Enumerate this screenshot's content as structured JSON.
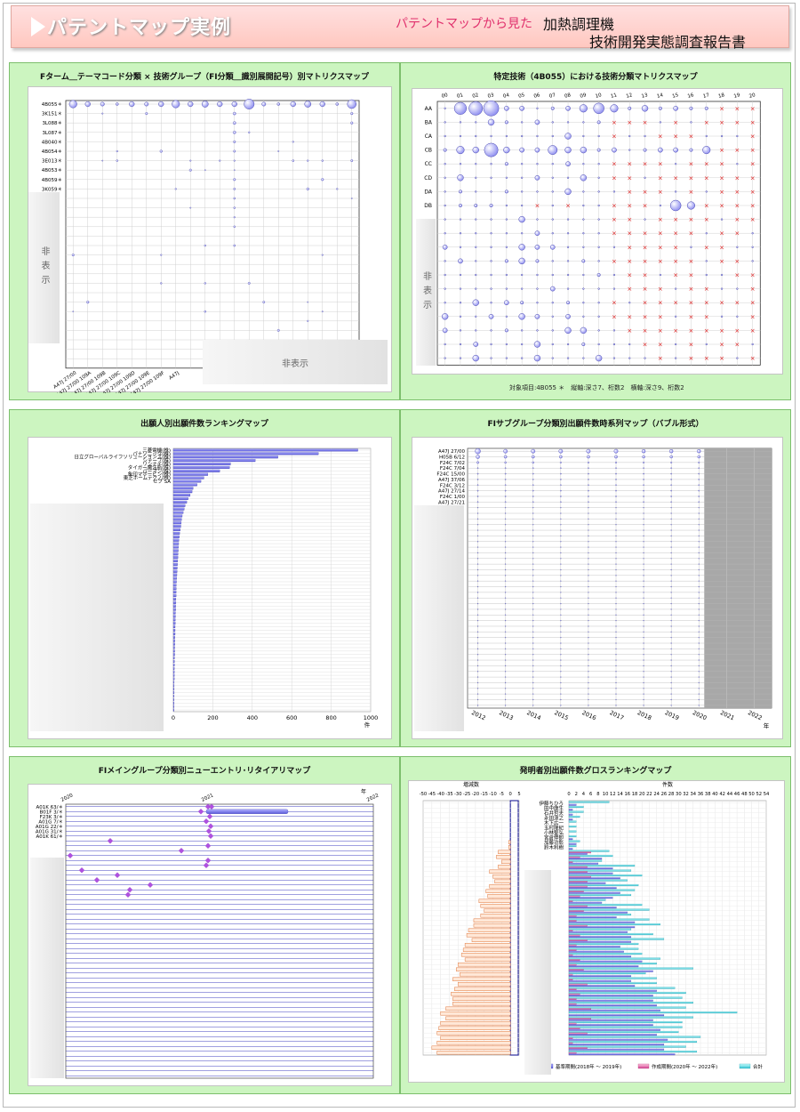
{
  "header": {
    "title": "パテントマップ実例",
    "subtitle_pink": "パテントマップから見た",
    "report_line1": "加熱調理機",
    "report_line2": "技術開発実態調査報告書"
  },
  "hidden_label": "非表示",
  "hidden_label_vertical": "非表示",
  "panels": {
    "p1": {
      "title": "Fターム＿テーマコード分類 × 技術グループ（FI分類＿識別展開記号）別マトリクスマップ"
    },
    "p2": {
      "title": "特定技術（4B055）における技術分類マトリクスマップ",
      "footnote": "対象項目:4B055 ＊　縦軸:深さ7、桁数2　横軸:深さ9、桁数2"
    },
    "p3": {
      "title": "出願人別出願件数ランキングマップ"
    },
    "p4": {
      "title": "FIサブグループ分類別出願件数時系列マップ（バブル形式）"
    },
    "p5": {
      "title": "FIメイングループ分類別ニューエントリ･リタイアリマップ"
    },
    "p6": {
      "title": "発明者別出願件数グロスランキングマップ",
      "legend": {
        "base": "基準期間(2018年 ～ 2019年)",
        "created": "作成期間(2020年 ～ 2022年)",
        "total": "合計"
      },
      "left_axis_title": "増減数",
      "right_axis_title": "件数"
    }
  },
  "chart_data": [
    {
      "id": "ftheme_matrix",
      "type": "scatter",
      "row_labels": [
        "4B055＊",
        "3K151＊",
        "3L088＊",
        "3L087＊",
        "4B040＊",
        "4B054＊",
        "3E013＊",
        "4B053＊",
        "4B059＊",
        "3K059＊"
      ],
      "col_labels": [
        "A47J 27/00",
        "A47J 27/00 109A",
        "A47J 27/00 109B",
        "A47J 27/00 109C",
        "A47J 27/00 109D",
        "A47J 27/00 109E",
        "A47J 27/00 109F",
        "A47J"
      ],
      "row0_sizes": [
        5,
        3,
        2,
        1,
        3,
        2,
        3,
        5,
        3,
        4,
        3,
        3,
        7,
        2,
        1,
        3,
        4,
        3,
        1,
        6
      ]
    },
    {
      "id": "b055_matrix",
      "type": "scatter",
      "x_labels": [
        "00",
        "01",
        "02",
        "03",
        "04",
        "05",
        "06",
        "07",
        "08",
        "09",
        "10",
        "11",
        "12",
        "13",
        "14",
        "15",
        "16",
        "17",
        "18",
        "19",
        "20"
      ],
      "y_labels": [
        "AA",
        "BA",
        "CA",
        "CB",
        "CC",
        "CD",
        "DA",
        "DB"
      ],
      "row_AA": [
        0,
        7,
        8,
        9,
        2,
        2,
        0,
        1,
        2,
        4,
        6,
        4,
        1,
        3,
        1,
        2,
        1,
        1,
        -1,
        -1,
        -1
      ],
      "row_CB": [
        1,
        4,
        3,
        8,
        3,
        2,
        2,
        5,
        3,
        3,
        1,
        2,
        0,
        1,
        2,
        2,
        1,
        4,
        -1,
        -1,
        -1
      ],
      "row_DB": [
        0,
        1,
        1,
        1,
        0,
        0,
        -1,
        0,
        -1,
        0,
        0,
        -1,
        -1,
        -1,
        0,
        6,
        4,
        -1,
        -1,
        -1,
        -1
      ]
    },
    {
      "id": "applicant_ranking",
      "type": "bar",
      "orientation": "horizontal",
      "categories": [
        "三菱電機(株)",
        "パナソニック(株)",
        "日立グローバルライフソリューションズ(株)",
        "シャープ(株)",
        "リンナイ(株)",
        "タイガー魔法瓶(株)",
        "パーマン(株)",
        "象印マホービン(株)",
        "東芝ホームテクノ(株)",
        "セブ SA"
      ],
      "values": [
        935,
        735,
        530,
        415,
        290,
        285,
        235,
        175,
        155,
        140
      ],
      "other_values": [
        120,
        100,
        95,
        85,
        75,
        68,
        60,
        55,
        50,
        45,
        42,
        40,
        38,
        35,
        32,
        30,
        28,
        27,
        26,
        25,
        24,
        23,
        22,
        21,
        20,
        19,
        18,
        17,
        16,
        15,
        15,
        14,
        14,
        13,
        13,
        12,
        12,
        11,
        11,
        10,
        10,
        9,
        9,
        9,
        8,
        8,
        8,
        7,
        7,
        7,
        6,
        6,
        6,
        5,
        5,
        5,
        5,
        4,
        4,
        4,
        4,
        3,
        3,
        3,
        3,
        3
      ],
      "xlim": [
        0,
        1000
      ],
      "x_ticks": [
        0,
        200,
        400,
        600,
        800,
        1000
      ],
      "x_unit": "件"
    },
    {
      "id": "fi_subgroup_timeseries",
      "type": "scatter",
      "row_labels": [
        "A47J 27/00",
        "H05B 6/12",
        "F24C 7/02",
        "F24C 7/04",
        "F24C 15/00",
        "A47J 37/06",
        "F24C 3/12",
        "A47J 27/14",
        "F24C 1/00",
        "A47J 27/21"
      ],
      "years": [
        "2012",
        "2013",
        "2014",
        "2015",
        "2016",
        "2017",
        "2018",
        "2019",
        "2020",
        "2021",
        "2022"
      ],
      "x_unit": "年",
      "shaded_from": "2021"
    },
    {
      "id": "fi_main_entry_retire",
      "type": "scatter",
      "row_labels": [
        "A01K 63/＊",
        "B01F 3/＊",
        "F23K 3/＊",
        "A01G 7/＊",
        "A01G 22/＊",
        "A01G 31/＊",
        "A01K 61/＊"
      ],
      "years": [
        "2020",
        "2021",
        "2022"
      ],
      "x_unit": "年"
    },
    {
      "id": "inventor_gross_ranking",
      "type": "bar",
      "orientation": "horizontal",
      "categories": [
        "伊藤ちひろ",
        "田中康生",
        "石井哲夫",
        "永田涼之",
        "木下広一",
        "玉村隆紀",
        "小林聖弘",
        "宮倉伸即",
        "加藤功彰",
        "鈴木利樹"
      ],
      "left_x_ticks": [
        "-50",
        "-45",
        "-40",
        "-35",
        "-30",
        "-25",
        "-20",
        "-15",
        "-10",
        "-5",
        "0",
        "5"
      ],
      "right_x_ticks": [
        "0",
        "2",
        "4",
        "6",
        "8",
        "10",
        "12",
        "14",
        "16",
        "18",
        "20",
        "22",
        "24",
        "26",
        "28",
        "30",
        "32",
        "34",
        "36",
        "38",
        "40",
        "42",
        "44",
        "46",
        "48",
        "50",
        "52",
        "54"
      ],
      "xlim_right": [
        0,
        54
      ],
      "top_series": {
        "base": [
          2,
          1,
          1,
          1,
          0,
          0,
          0,
          1,
          2,
          1
        ],
        "created": [
          0,
          0,
          0,
          0,
          0,
          0,
          0,
          0,
          0,
          0
        ],
        "total": [
          11,
          4,
          4,
          3,
          2,
          2,
          2,
          2,
          3,
          2
        ]
      }
    }
  ]
}
